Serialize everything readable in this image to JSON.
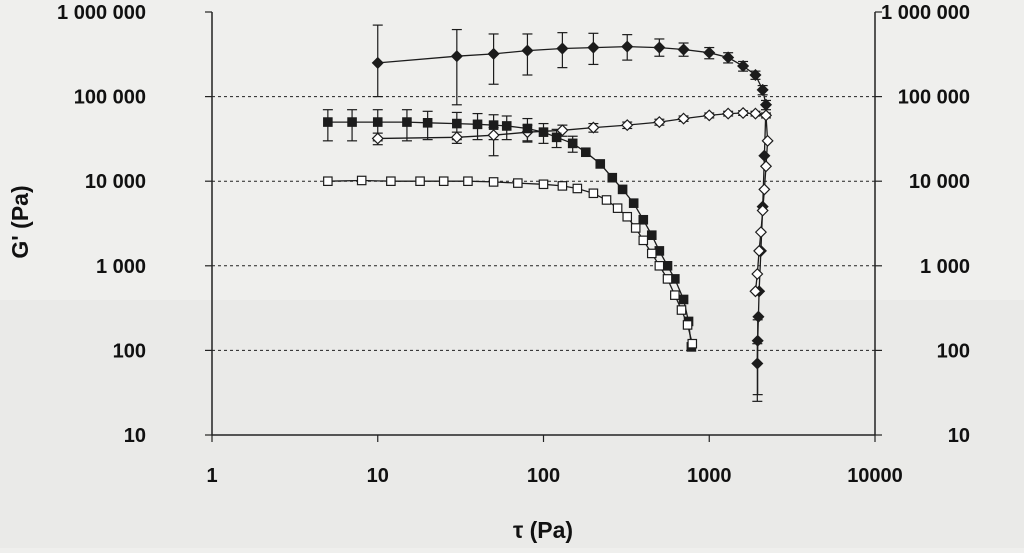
{
  "chart_data": {
    "type": "scatter",
    "xscale": "log",
    "yscale": "log",
    "xlim": [
      1,
      10000
    ],
    "ylim": [
      10,
      1000000
    ],
    "xlabel": "τ (Pa)",
    "ylabel": "G' (Pa)",
    "x_ticks": [
      1,
      10,
      100,
      1000,
      10000
    ],
    "x_tick_labels": [
      "1",
      "10",
      "100",
      "1000",
      "10000"
    ],
    "y_ticks": [
      10,
      100,
      1000,
      10000,
      100000,
      1000000
    ],
    "y_tick_labels": [
      "10",
      "100",
      "1 000",
      "10 000",
      "100 000",
      "1 000 000"
    ],
    "grid": {
      "horizontal_dashed": true,
      "vertical": false
    },
    "right_axis_mirrored": true,
    "series": [
      {
        "marker": "filled-diamond",
        "color": "#1c1c1c",
        "connected": true,
        "errorbars": true,
        "points": [
          {
            "x": 10,
            "y": 250000,
            "err_lo": 150000,
            "err_hi": 450000
          },
          {
            "x": 30,
            "y": 300000,
            "err_lo": 220000,
            "err_hi": 320000
          },
          {
            "x": 50,
            "y": 320000,
            "err_lo": 180000,
            "err_hi": 230000
          },
          {
            "x": 80,
            "y": 350000,
            "err_lo": 170000,
            "err_hi": 200000
          },
          {
            "x": 130,
            "y": 370000,
            "err_lo": 150000,
            "err_hi": 200000
          },
          {
            "x": 200,
            "y": 380000,
            "err_lo": 140000,
            "err_hi": 180000
          },
          {
            "x": 320,
            "y": 390000,
            "err_lo": 120000,
            "err_hi": 150000
          },
          {
            "x": 500,
            "y": 380000,
            "err_lo": 80000,
            "err_hi": 100000
          },
          {
            "x": 700,
            "y": 360000,
            "err_lo": 60000,
            "err_hi": 70000
          },
          {
            "x": 1000,
            "y": 330000,
            "err_lo": 50000,
            "err_hi": 50000
          },
          {
            "x": 1300,
            "y": 290000,
            "err_lo": 40000,
            "err_hi": 40000
          },
          {
            "x": 1600,
            "y": 230000,
            "err_lo": 30000,
            "err_hi": 30000
          },
          {
            "x": 1900,
            "y": 180000,
            "err_lo": 20000,
            "err_hi": 20000
          },
          {
            "x": 2100,
            "y": 120000,
            "err_lo": 15000,
            "err_hi": 15000
          },
          {
            "x": 2200,
            "y": 80000,
            "err_lo": 10000,
            "err_hi": 10000
          },
          {
            "x": 2150,
            "y": 20000
          },
          {
            "x": 2100,
            "y": 5000
          },
          {
            "x": 2050,
            "y": 1500
          },
          {
            "x": 2000,
            "y": 500
          },
          {
            "x": 1980,
            "y": 250
          },
          {
            "x": 1960,
            "y": 130,
            "err_lo": 100,
            "err_hi": 100
          },
          {
            "x": 1950,
            "y": 70,
            "err_lo": 45,
            "err_hi": 50
          }
        ]
      },
      {
        "marker": "open-diamond",
        "color": "#1c1c1c",
        "connected": true,
        "errorbars": true,
        "points": [
          {
            "x": 10,
            "y": 32000,
            "err_lo": 5000,
            "err_hi": 5000
          },
          {
            "x": 30,
            "y": 33000,
            "err_lo": 5000,
            "err_hi": 5000
          },
          {
            "x": 50,
            "y": 35000,
            "err_lo": 15000,
            "err_hi": 8000
          },
          {
            "x": 80,
            "y": 38000,
            "err_lo": 8000,
            "err_hi": 8000
          },
          {
            "x": 130,
            "y": 40000,
            "err_lo": 6000,
            "err_hi": 6000
          },
          {
            "x": 200,
            "y": 43000,
            "err_lo": 5000,
            "err_hi": 5000
          },
          {
            "x": 320,
            "y": 46000,
            "err_lo": 4000,
            "err_hi": 4000
          },
          {
            "x": 500,
            "y": 50000,
            "err_lo": 4000,
            "err_hi": 4000
          },
          {
            "x": 700,
            "y": 55000,
            "err_lo": 4000,
            "err_hi": 4000
          },
          {
            "x": 1000,
            "y": 60000,
            "err_lo": 4000,
            "err_hi": 4000
          },
          {
            "x": 1300,
            "y": 63000,
            "err_lo": 4000,
            "err_hi": 4000
          },
          {
            "x": 1600,
            "y": 64000,
            "err_lo": 4000,
            "err_hi": 4000
          },
          {
            "x": 1900,
            "y": 63000,
            "err_lo": 4000,
            "err_hi": 4000
          },
          {
            "x": 2200,
            "y": 60000,
            "err_lo": 4000,
            "err_hi": 4000
          },
          {
            "x": 2250,
            "y": 30000
          },
          {
            "x": 2200,
            "y": 15000
          },
          {
            "x": 2150,
            "y": 8000
          },
          {
            "x": 2100,
            "y": 4500
          },
          {
            "x": 2050,
            "y": 2500
          },
          {
            "x": 2000,
            "y": 1500
          },
          {
            "x": 1950,
            "y": 800
          },
          {
            "x": 1900,
            "y": 500
          }
        ]
      },
      {
        "marker": "filled-square",
        "color": "#1c1c1c",
        "connected": true,
        "errorbars": true,
        "points": [
          {
            "x": 5,
            "y": 50000,
            "err_lo": 20000,
            "err_hi": 20000
          },
          {
            "x": 7,
            "y": 50000,
            "err_lo": 20000,
            "err_hi": 20000
          },
          {
            "x": 10,
            "y": 50000,
            "err_lo": 20000,
            "err_hi": 20000
          },
          {
            "x": 15,
            "y": 50000,
            "err_lo": 20000,
            "err_hi": 20000
          },
          {
            "x": 20,
            "y": 49000,
            "err_lo": 18000,
            "err_hi": 18000
          },
          {
            "x": 30,
            "y": 48000,
            "err_lo": 17000,
            "err_hi": 17000
          },
          {
            "x": 40,
            "y": 47000,
            "err_lo": 16000,
            "err_hi": 16000
          },
          {
            "x": 50,
            "y": 46000,
            "err_lo": 15000,
            "err_hi": 15000
          },
          {
            "x": 60,
            "y": 45000,
            "err_lo": 14000,
            "err_hi": 14000
          },
          {
            "x": 80,
            "y": 42000,
            "err_lo": 13000,
            "err_hi": 13000
          },
          {
            "x": 100,
            "y": 38000,
            "err_lo": 10000,
            "err_hi": 10000
          },
          {
            "x": 120,
            "y": 33000,
            "err_lo": 8000,
            "err_hi": 8000
          },
          {
            "x": 150,
            "y": 28000,
            "err_lo": 6000,
            "err_hi": 6000
          },
          {
            "x": 180,
            "y": 22000
          },
          {
            "x": 220,
            "y": 16000
          },
          {
            "x": 260,
            "y": 11000
          },
          {
            "x": 300,
            "y": 8000
          },
          {
            "x": 350,
            "y": 5500
          },
          {
            "x": 400,
            "y": 3500
          },
          {
            "x": 450,
            "y": 2300
          },
          {
            "x": 500,
            "y": 1500
          },
          {
            "x": 560,
            "y": 1000
          },
          {
            "x": 620,
            "y": 700
          },
          {
            "x": 700,
            "y": 400
          },
          {
            "x": 750,
            "y": 220
          },
          {
            "x": 780,
            "y": 110
          }
        ]
      },
      {
        "marker": "open-square",
        "color": "#1c1c1c",
        "connected": true,
        "errorbars": false,
        "points": [
          {
            "x": 5,
            "y": 10000
          },
          {
            "x": 8,
            "y": 10200
          },
          {
            "x": 12,
            "y": 10000
          },
          {
            "x": 18,
            "y": 10000
          },
          {
            "x": 25,
            "y": 10000
          },
          {
            "x": 35,
            "y": 10000
          },
          {
            "x": 50,
            "y": 9800
          },
          {
            "x": 70,
            "y": 9500
          },
          {
            "x": 100,
            "y": 9200
          },
          {
            "x": 130,
            "y": 8800
          },
          {
            "x": 160,
            "y": 8200
          },
          {
            "x": 200,
            "y": 7200
          },
          {
            "x": 240,
            "y": 6000
          },
          {
            "x": 280,
            "y": 4800
          },
          {
            "x": 320,
            "y": 3800
          },
          {
            "x": 360,
            "y": 2800
          },
          {
            "x": 400,
            "y": 2000
          },
          {
            "x": 450,
            "y": 1400
          },
          {
            "x": 500,
            "y": 1000
          },
          {
            "x": 560,
            "y": 700
          },
          {
            "x": 620,
            "y": 450
          },
          {
            "x": 680,
            "y": 300
          },
          {
            "x": 740,
            "y": 200
          },
          {
            "x": 790,
            "y": 120
          }
        ]
      }
    ]
  }
}
